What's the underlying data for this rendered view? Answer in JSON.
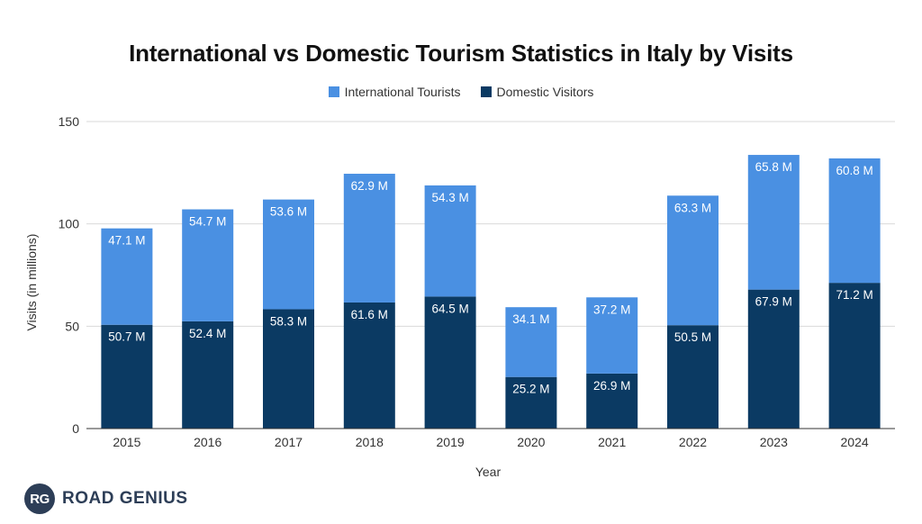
{
  "chart_data": {
    "type": "bar",
    "stacked": true,
    "title": "International vs Domestic Tourism Statistics in Italy by Visits",
    "xlabel": "Year",
    "ylabel": "Visits (in millions)",
    "ylim": [
      0,
      150
    ],
    "yticks": [
      0,
      50,
      100,
      150
    ],
    "grid": true,
    "legend_position": "top",
    "categories": [
      "2015",
      "2016",
      "2017",
      "2018",
      "2019",
      "2020",
      "2021",
      "2022",
      "2023",
      "2024"
    ],
    "series": [
      {
        "name": "Domestic Visitors",
        "color": "#0b3a63",
        "values": [
          50.7,
          52.4,
          58.3,
          61.6,
          64.5,
          25.2,
          26.9,
          50.5,
          67.9,
          71.2
        ],
        "labels": [
          "50.7 M",
          "52.4 M",
          "58.3 M",
          "61.6 M",
          "64.5 M",
          "25.2 M",
          "26.9 M",
          "50.5 M",
          "67.9 M",
          "71.2 M"
        ]
      },
      {
        "name": "International Tourists",
        "color": "#4a90e2",
        "values": [
          47.1,
          54.7,
          53.6,
          62.9,
          54.3,
          34.1,
          37.2,
          63.3,
          65.8,
          60.8
        ],
        "labels": [
          "47.1 M",
          "54.7 M",
          "53.6 M",
          "62.9 M",
          "54.3 M",
          "34.1 M",
          "37.2 M",
          "63.3 M",
          "65.8 M",
          "60.8 M"
        ]
      }
    ]
  },
  "legend": {
    "international_label": "International Tourists",
    "domestic_label": "Domestic Visitors"
  },
  "brand": {
    "logo_text": "RG",
    "name": "ROAD GENIUS"
  }
}
